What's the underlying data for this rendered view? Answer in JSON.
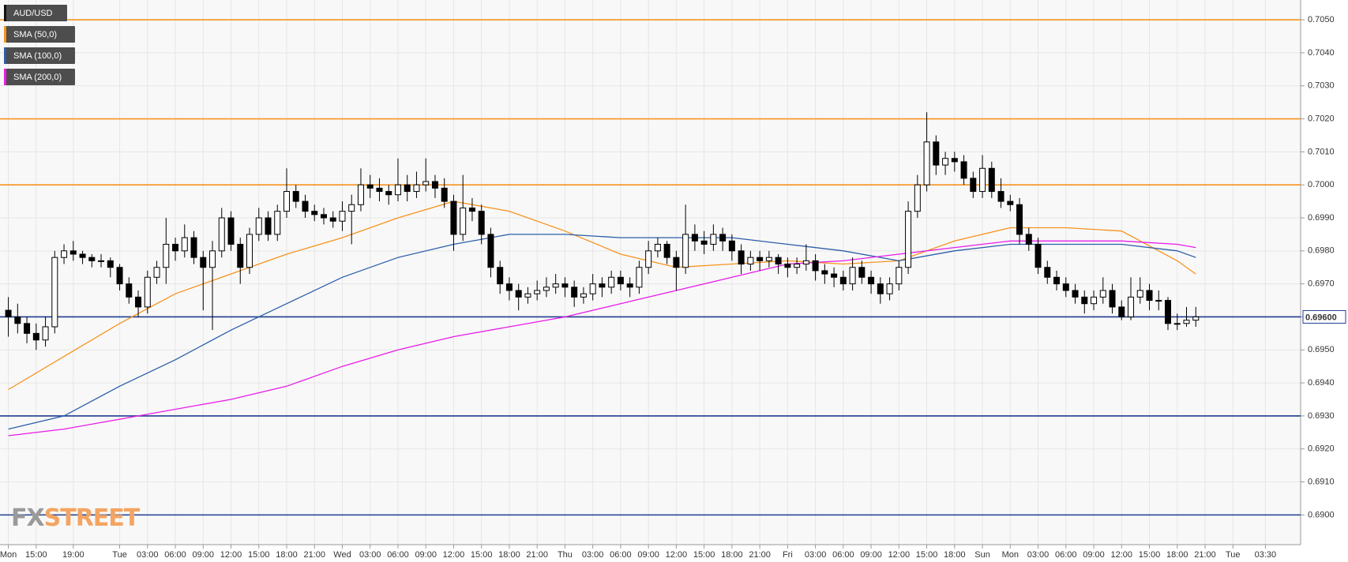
{
  "chart_data": {
    "type": "candlestick",
    "candles": {
      "name": "AUD/USD",
      "color": "#000000",
      "ohlc": [
        [
          0.6962,
          0.6966,
          0.6954,
          0.696
        ],
        [
          0.696,
          0.6964,
          0.6955,
          0.6958
        ],
        [
          0.6958,
          0.696,
          0.6952,
          0.6955
        ],
        [
          0.6955,
          0.6958,
          0.695,
          0.6953
        ],
        [
          0.6953,
          0.696,
          0.6951,
          0.6957
        ],
        [
          0.6957,
          0.698,
          0.6955,
          0.6978
        ],
        [
          0.6978,
          0.6982,
          0.6976,
          0.698
        ],
        [
          0.698,
          0.6983,
          0.6977,
          0.6979
        ],
        [
          0.6979,
          0.698,
          0.6976,
          0.6978
        ],
        [
          0.6978,
          0.6979,
          0.6975,
          0.6977
        ],
        [
          0.6977,
          0.6979,
          0.6975,
          0.6977
        ],
        [
          0.6977,
          0.6978,
          0.6972,
          0.6975
        ],
        [
          0.6975,
          0.6976,
          0.6968,
          0.697
        ],
        [
          0.697,
          0.6972,
          0.6964,
          0.6966
        ],
        [
          0.6966,
          0.6968,
          0.696,
          0.6963
        ],
        [
          0.6963,
          0.6974,
          0.6961,
          0.6972
        ],
        [
          0.6972,
          0.6977,
          0.697,
          0.6975
        ],
        [
          0.6975,
          0.699,
          0.697,
          0.6982
        ],
        [
          0.6982,
          0.6984,
          0.6977,
          0.698
        ],
        [
          0.698,
          0.6988,
          0.6978,
          0.6984
        ],
        [
          0.6984,
          0.6986,
          0.6976,
          0.6978
        ],
        [
          0.6978,
          0.698,
          0.6962,
          0.6975
        ],
        [
          0.6975,
          0.6983,
          0.6956,
          0.698
        ],
        [
          0.698,
          0.6993,
          0.6978,
          0.699
        ],
        [
          0.699,
          0.6992,
          0.698,
          0.6982
        ],
        [
          0.6982,
          0.6984,
          0.697,
          0.6975
        ],
        [
          0.6975,
          0.6987,
          0.6973,
          0.6985
        ],
        [
          0.6985,
          0.6993,
          0.6983,
          0.699
        ],
        [
          0.699,
          0.6992,
          0.6983,
          0.6985
        ],
        [
          0.6985,
          0.6994,
          0.6983,
          0.6992
        ],
        [
          0.6992,
          0.7005,
          0.699,
          0.6998
        ],
        [
          0.6998,
          0.7,
          0.6993,
          0.6995
        ],
        [
          0.6995,
          0.6997,
          0.699,
          0.6992
        ],
        [
          0.6992,
          0.6994,
          0.6989,
          0.6991
        ],
        [
          0.6991,
          0.6993,
          0.6988,
          0.699
        ],
        [
          0.699,
          0.6992,
          0.6987,
          0.6989
        ],
        [
          0.6989,
          0.6995,
          0.6986,
          0.6992
        ],
        [
          0.6992,
          0.6997,
          0.6982,
          0.6994
        ],
        [
          0.6994,
          0.7005,
          0.6992,
          0.7
        ],
        [
          0.7,
          0.7003,
          0.6996,
          0.6999
        ],
        [
          0.6999,
          0.7002,
          0.6995,
          0.6998
        ],
        [
          0.6998,
          0.7,
          0.6994,
          0.6997
        ],
        [
          0.6997,
          0.7008,
          0.6995,
          0.7
        ],
        [
          0.7,
          0.7003,
          0.6995,
          0.6998
        ],
        [
          0.6998,
          0.7004,
          0.6996,
          0.7
        ],
        [
          0.7,
          0.7008,
          0.6998,
          0.7001
        ],
        [
          0.7001,
          0.7003,
          0.6996,
          0.6999
        ],
        [
          0.6999,
          0.7002,
          0.6993,
          0.6995
        ],
        [
          0.6995,
          0.6997,
          0.698,
          0.6985
        ],
        [
          0.6985,
          0.7003,
          0.6983,
          0.6993
        ],
        [
          0.6993,
          0.6996,
          0.6989,
          0.6992
        ],
        [
          0.6992,
          0.6994,
          0.6982,
          0.6985
        ],
        [
          0.6985,
          0.6987,
          0.6972,
          0.6975
        ],
        [
          0.6975,
          0.6977,
          0.6967,
          0.697
        ],
        [
          0.697,
          0.6972,
          0.6965,
          0.6968
        ],
        [
          0.6968,
          0.697,
          0.6962,
          0.6966
        ],
        [
          0.6966,
          0.6969,
          0.6964,
          0.6967
        ],
        [
          0.6967,
          0.6971,
          0.6965,
          0.6968
        ],
        [
          0.6968,
          0.6972,
          0.6966,
          0.6969
        ],
        [
          0.6969,
          0.6973,
          0.6967,
          0.697
        ],
        [
          0.697,
          0.6972,
          0.6966,
          0.6969
        ],
        [
          0.6969,
          0.6971,
          0.6963,
          0.6966
        ],
        [
          0.6966,
          0.6969,
          0.6964,
          0.6967
        ],
        [
          0.6967,
          0.6973,
          0.6965,
          0.697
        ],
        [
          0.697,
          0.6972,
          0.6966,
          0.6969
        ],
        [
          0.6969,
          0.6974,
          0.6967,
          0.6972
        ],
        [
          0.6972,
          0.6974,
          0.6968,
          0.697
        ],
        [
          0.697,
          0.6972,
          0.6966,
          0.6969
        ],
        [
          0.6969,
          0.6977,
          0.6967,
          0.6975
        ],
        [
          0.6975,
          0.6983,
          0.6973,
          0.698
        ],
        [
          0.698,
          0.6984,
          0.6978,
          0.6982
        ],
        [
          0.6982,
          0.6983,
          0.6976,
          0.6978
        ],
        [
          0.6978,
          0.698,
          0.6968,
          0.6975
        ],
        [
          0.6975,
          0.6994,
          0.6973,
          0.6985
        ],
        [
          0.6985,
          0.6988,
          0.698,
          0.6983
        ],
        [
          0.6983,
          0.6986,
          0.6979,
          0.6982
        ],
        [
          0.6982,
          0.6988,
          0.698,
          0.6985
        ],
        [
          0.6985,
          0.6987,
          0.698,
          0.6983
        ],
        [
          0.6983,
          0.6985,
          0.6977,
          0.698
        ],
        [
          0.698,
          0.6982,
          0.6973,
          0.6976
        ],
        [
          0.6976,
          0.698,
          0.6974,
          0.6978
        ],
        [
          0.6978,
          0.698,
          0.6974,
          0.6977
        ],
        [
          0.6977,
          0.698,
          0.6975,
          0.6978
        ],
        [
          0.6978,
          0.6979,
          0.6973,
          0.6976
        ],
        [
          0.6976,
          0.6978,
          0.6972,
          0.6975
        ],
        [
          0.6975,
          0.6978,
          0.6973,
          0.6976
        ],
        [
          0.6976,
          0.6982,
          0.6974,
          0.6977
        ],
        [
          0.6977,
          0.6979,
          0.6971,
          0.6974
        ],
        [
          0.6974,
          0.6976,
          0.697,
          0.6973
        ],
        [
          0.6973,
          0.6975,
          0.6969,
          0.6972
        ],
        [
          0.6972,
          0.6974,
          0.6968,
          0.697
        ],
        [
          0.697,
          0.6978,
          0.6968,
          0.6975
        ],
        [
          0.6975,
          0.6977,
          0.697,
          0.6972
        ],
        [
          0.6972,
          0.6974,
          0.6967,
          0.697
        ],
        [
          0.697,
          0.6972,
          0.6964,
          0.6967
        ],
        [
          0.6967,
          0.6972,
          0.6965,
          0.697
        ],
        [
          0.697,
          0.6977,
          0.6968,
          0.6975
        ],
        [
          0.6975,
          0.6995,
          0.6973,
          0.6992
        ],
        [
          0.6992,
          0.7003,
          0.699,
          0.7
        ],
        [
          0.7,
          0.7022,
          0.6998,
          0.7013
        ],
        [
          0.7013,
          0.7015,
          0.7003,
          0.7006
        ],
        [
          0.7006,
          0.701,
          0.7003,
          0.7008
        ],
        [
          0.7008,
          0.701,
          0.7004,
          0.7007
        ],
        [
          0.7007,
          0.7009,
          0.7,
          0.7002
        ],
        [
          0.7002,
          0.7004,
          0.6996,
          0.6998
        ],
        [
          0.6998,
          0.7009,
          0.6996,
          0.7005
        ],
        [
          0.7005,
          0.7007,
          0.6996,
          0.6998
        ],
        [
          0.6998,
          0.7002,
          0.6993,
          0.6995
        ],
        [
          0.6995,
          0.6997,
          0.6992,
          0.6994
        ],
        [
          0.6994,
          0.6996,
          0.6982,
          0.6985
        ],
        [
          0.6985,
          0.6987,
          0.698,
          0.6982
        ],
        [
          0.6982,
          0.6984,
          0.6973,
          0.6975
        ],
        [
          0.6975,
          0.6977,
          0.697,
          0.6972
        ],
        [
          0.6972,
          0.6974,
          0.6968,
          0.697
        ],
        [
          0.697,
          0.6972,
          0.6966,
          0.6968
        ],
        [
          0.6968,
          0.697,
          0.6964,
          0.6966
        ],
        [
          0.6966,
          0.6968,
          0.6961,
          0.6964
        ],
        [
          0.6964,
          0.6968,
          0.6962,
          0.6966
        ],
        [
          0.6966,
          0.6972,
          0.6964,
          0.6968
        ],
        [
          0.6968,
          0.697,
          0.6961,
          0.6963
        ],
        [
          0.6963,
          0.6965,
          0.6959,
          0.696
        ],
        [
          0.696,
          0.6972,
          0.6959,
          0.6966
        ],
        [
          0.6966,
          0.6972,
          0.6964,
          0.6968
        ],
        [
          0.6968,
          0.697,
          0.6962,
          0.6965
        ],
        [
          0.6965,
          0.6968,
          0.6962,
          0.6965
        ],
        [
          0.6965,
          0.6966,
          0.6956,
          0.6958
        ],
        [
          0.6958,
          0.6961,
          0.6956,
          0.6958
        ],
        [
          0.6958,
          0.6963,
          0.6957,
          0.6959
        ],
        [
          0.6959,
          0.6963,
          0.6957,
          0.696
        ]
      ]
    },
    "series": [
      {
        "name": "SMA (50,0)",
        "color": "#f7931e",
        "x": [
          0,
          6,
          12,
          18,
          24,
          30,
          36,
          42,
          48,
          54,
          60,
          66,
          72,
          78,
          84,
          90,
          96,
          102,
          108,
          114,
          120,
          126,
          128
        ],
        "values": [
          0.6938,
          0.6948,
          0.6958,
          0.6967,
          0.6973,
          0.6979,
          0.6984,
          0.699,
          0.6995,
          0.6992,
          0.6986,
          0.6979,
          0.6975,
          0.6976,
          0.6977,
          0.6976,
          0.6977,
          0.6983,
          0.6987,
          0.6987,
          0.6986,
          0.6977,
          0.6973
        ]
      },
      {
        "name": "SMA (100,0)",
        "color": "#2b5ea8",
        "x": [
          0,
          6,
          12,
          18,
          24,
          30,
          36,
          42,
          48,
          54,
          60,
          66,
          72,
          78,
          84,
          90,
          96,
          102,
          108,
          114,
          120,
          126,
          128
        ],
        "values": [
          0.6926,
          0.693,
          0.6939,
          0.6947,
          0.6956,
          0.6964,
          0.6972,
          0.6978,
          0.6982,
          0.6985,
          0.6985,
          0.6984,
          0.6984,
          0.6984,
          0.6982,
          0.698,
          0.6977,
          0.698,
          0.6982,
          0.6982,
          0.6982,
          0.698,
          0.6978
        ]
      },
      {
        "name": "SMA (200,0)",
        "color": "#e81ce8",
        "x": [
          0,
          6,
          12,
          18,
          24,
          30,
          36,
          42,
          48,
          54,
          60,
          66,
          72,
          78,
          84,
          90,
          96,
          102,
          108,
          114,
          120,
          126,
          128
        ],
        "values": [
          0.6924,
          0.6926,
          0.6929,
          0.6932,
          0.6935,
          0.6939,
          0.6945,
          0.695,
          0.6954,
          0.6957,
          0.696,
          0.6964,
          0.6968,
          0.6972,
          0.6976,
          0.6977,
          0.6979,
          0.6981,
          0.6983,
          0.6983,
          0.6983,
          0.6982,
          0.6981
        ]
      }
    ],
    "levels": [
      {
        "value": 0.705,
        "color": "#f7931e"
      },
      {
        "value": 0.702,
        "color": "#f7931e"
      },
      {
        "value": 0.7,
        "color": "#f7931e"
      },
      {
        "value": 0.696,
        "color": "#1f3d8f"
      },
      {
        "value": 0.693,
        "color": "#1f3d8f"
      },
      {
        "value": 0.69,
        "color": "#1f3d8f"
      }
    ],
    "last_price": {
      "value": 0.696,
      "label": "0.69600"
    },
    "xlim": [
      -0.9,
      139.3
    ],
    "xticks": [
      {
        "value": 0,
        "label": "Mon"
      },
      {
        "value": 3,
        "label": "15:00"
      },
      {
        "value": 7,
        "label": "19:00"
      },
      {
        "value": 12,
        "label": "Tue"
      },
      {
        "value": 15,
        "label": "03:00"
      },
      {
        "value": 18,
        "label": "06:00"
      },
      {
        "value": 21,
        "label": "09:00"
      },
      {
        "value": 24,
        "label": "12:00"
      },
      {
        "value": 27,
        "label": "15:00"
      },
      {
        "value": 30,
        "label": "18:00"
      },
      {
        "value": 33,
        "label": "21:00"
      },
      {
        "value": 36,
        "label": "Wed"
      },
      {
        "value": 39,
        "label": "03:00"
      },
      {
        "value": 42,
        "label": "06:00"
      },
      {
        "value": 45,
        "label": "09:00"
      },
      {
        "value": 48,
        "label": "12:00"
      },
      {
        "value": 51,
        "label": "15:00"
      },
      {
        "value": 54,
        "label": "18:00"
      },
      {
        "value": 57,
        "label": "21:00"
      },
      {
        "value": 60,
        "label": "Thu"
      },
      {
        "value": 63,
        "label": "03:00"
      },
      {
        "value": 66,
        "label": "06:00"
      },
      {
        "value": 69,
        "label": "09:00"
      },
      {
        "value": 72,
        "label": "12:00"
      },
      {
        "value": 75,
        "label": "15:00"
      },
      {
        "value": 78,
        "label": "18:00"
      },
      {
        "value": 81,
        "label": "21:00"
      },
      {
        "value": 84,
        "label": "Fri"
      },
      {
        "value": 87,
        "label": "03:00"
      },
      {
        "value": 90,
        "label": "06:00"
      },
      {
        "value": 93,
        "label": "09:00"
      },
      {
        "value": 96,
        "label": "12:00"
      },
      {
        "value": 99,
        "label": "15:00"
      },
      {
        "value": 102,
        "label": "18:00"
      },
      {
        "value": 105,
        "label": "Sun"
      },
      {
        "value": 108,
        "label": "Mon"
      },
      {
        "value": 111,
        "label": "03:00"
      },
      {
        "value": 114,
        "label": "06:00"
      },
      {
        "value": 117,
        "label": "09:00"
      },
      {
        "value": 120,
        "label": "12:00"
      },
      {
        "value": 123,
        "label": "15:00"
      },
      {
        "value": 126,
        "label": "18:00"
      },
      {
        "value": 129,
        "label": "21:00"
      },
      {
        "value": 132,
        "label": "Tue"
      },
      {
        "value": 135.5,
        "label": "03:30"
      }
    ],
    "ylim": [
      0.6891,
      0.7056
    ],
    "yticks": [
      {
        "value": 0.69,
        "label": "0.6900"
      },
      {
        "value": 0.691,
        "label": "0.6910"
      },
      {
        "value": 0.692,
        "label": "0.6920"
      },
      {
        "value": 0.693,
        "label": "0.6930"
      },
      {
        "value": 0.694,
        "label": "0.6940"
      },
      {
        "value": 0.695,
        "label": "0.6950"
      },
      {
        "value": 0.696,
        "label": "0.6960"
      },
      {
        "value": 0.697,
        "label": "0.6970"
      },
      {
        "value": 0.698,
        "label": "0.6980"
      },
      {
        "value": 0.699,
        "label": "0.6990"
      },
      {
        "value": 0.7,
        "label": "0.7000"
      },
      {
        "value": 0.701,
        "label": "0.7010"
      },
      {
        "value": 0.702,
        "label": "0.7020"
      },
      {
        "value": 0.703,
        "label": "0.7030"
      },
      {
        "value": 0.704,
        "label": "0.7040"
      },
      {
        "value": 0.705,
        "label": "0.7050"
      }
    ],
    "grid": true,
    "legend": "upper left",
    "watermark": [
      "FX",
      "STREET"
    ]
  }
}
